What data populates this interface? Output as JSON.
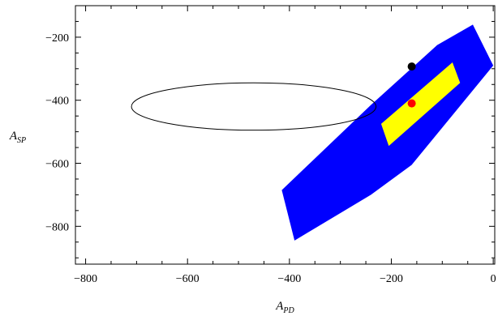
{
  "chart_data": {
    "type": "scatter",
    "xlabel": "A",
    "xlabel_sub": "PD",
    "ylabel": "A",
    "ylabel_sub": "SP",
    "xlim": [
      -820,
      3
    ],
    "ylim": [
      -920,
      -100
    ],
    "xticks": [
      -800,
      -600,
      -400,
      -200,
      0
    ],
    "yticks": [
      -200,
      -400,
      -600,
      -800
    ],
    "xtick_labels": [
      "−800",
      "−600",
      "−400",
      "−200",
      "0"
    ],
    "ytick_labels": [
      "−200",
      "−400",
      "−600",
      "−800"
    ],
    "grid": false,
    "regions": [
      {
        "color": "#0000ff",
        "points": [
          [
            -415,
            -685
          ],
          [
            -390,
            -845
          ],
          [
            -240,
            -700
          ],
          [
            -160,
            -605
          ],
          [
            0,
            -290
          ],
          [
            -40,
            -160
          ],
          [
            -110,
            -225
          ],
          [
            -240,
            -415
          ]
        ]
      },
      {
        "color": "#ffff00",
        "points": [
          [
            -220,
            -475
          ],
          [
            -205,
            -545
          ],
          [
            -65,
            -345
          ],
          [
            -80,
            -280
          ]
        ]
      }
    ],
    "ellipse": {
      "center": [
        -470,
        -420
      ],
      "radii": [
        240,
        75
      ],
      "color": "#000000"
    },
    "points": [
      {
        "x": -160,
        "y": -293,
        "color": "#000000"
      },
      {
        "x": -160,
        "y": -410,
        "color": "#ff0000"
      }
    ]
  }
}
